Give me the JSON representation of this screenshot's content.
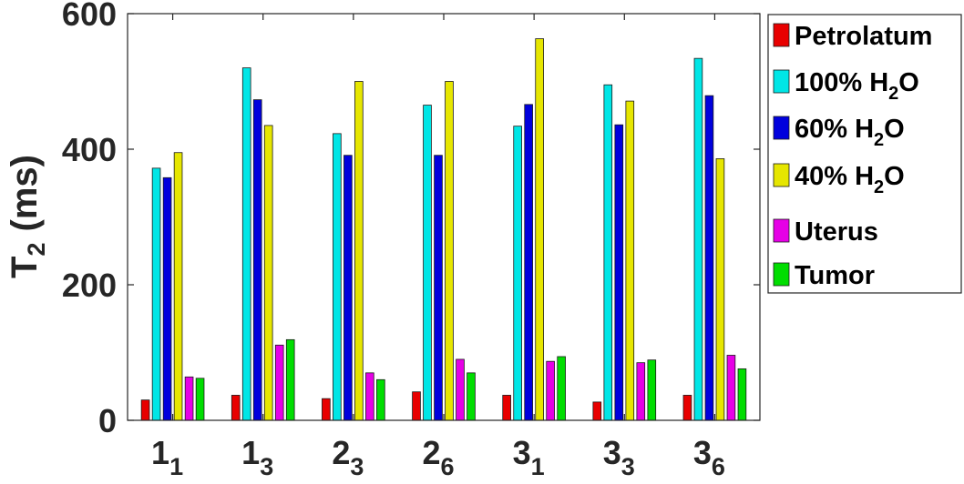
{
  "chart_data": {
    "type": "bar",
    "title": "",
    "xlabel": "",
    "ylabel": {
      "base": "T",
      "sub": "2",
      "unit": "(ms)"
    },
    "ylim": [
      0,
      600
    ],
    "yticks": [
      "0",
      "200",
      "400",
      "600"
    ],
    "grid": false,
    "legend_position": "top-right (outside)",
    "categories": [
      {
        "main": "1",
        "sub": "1"
      },
      {
        "main": "1",
        "sub": "3"
      },
      {
        "main": "2",
        "sub": "3"
      },
      {
        "main": "2",
        "sub": "6"
      },
      {
        "main": "3",
        "sub": "1"
      },
      {
        "main": "3",
        "sub": "3"
      },
      {
        "main": "3",
        "sub": "6"
      }
    ],
    "series": [
      {
        "name": "Petrolatum",
        "label": {
          "text": "Petrolatum",
          "sub": "",
          "after": ""
        },
        "color": "#e80000",
        "values": [
          30,
          37,
          32,
          42,
          37,
          27,
          37
        ]
      },
      {
        "name": "100% H2O",
        "label": {
          "text": "100% H",
          "sub": "2",
          "after": "O"
        },
        "color": "#00e6e6",
        "values": [
          372,
          520,
          423,
          465,
          434,
          495,
          534
        ]
      },
      {
        "name": "60% H2O",
        "label": {
          "text": "60% H",
          "sub": "2",
          "after": "O"
        },
        "color": "#0000dd",
        "values": [
          358,
          473,
          391,
          391,
          466,
          436,
          479
        ]
      },
      {
        "name": "40% H2O",
        "label": {
          "text": "40% H",
          "sub": "2",
          "after": "O"
        },
        "color": "#e6e600",
        "values": [
          395,
          435,
          500,
          500,
          563,
          471,
          386
        ]
      },
      {
        "name": "Uterus",
        "label": {
          "text": "Uterus",
          "sub": "",
          "after": ""
        },
        "color": "#e600e6",
        "values": [
          64,
          111,
          70,
          90,
          87,
          85,
          96
        ]
      },
      {
        "name": "Tumor",
        "label": {
          "text": "Tumor",
          "sub": "",
          "after": ""
        },
        "color": "#00dd00",
        "values": [
          62,
          119,
          60,
          70,
          94,
          89,
          76
        ]
      }
    ]
  }
}
